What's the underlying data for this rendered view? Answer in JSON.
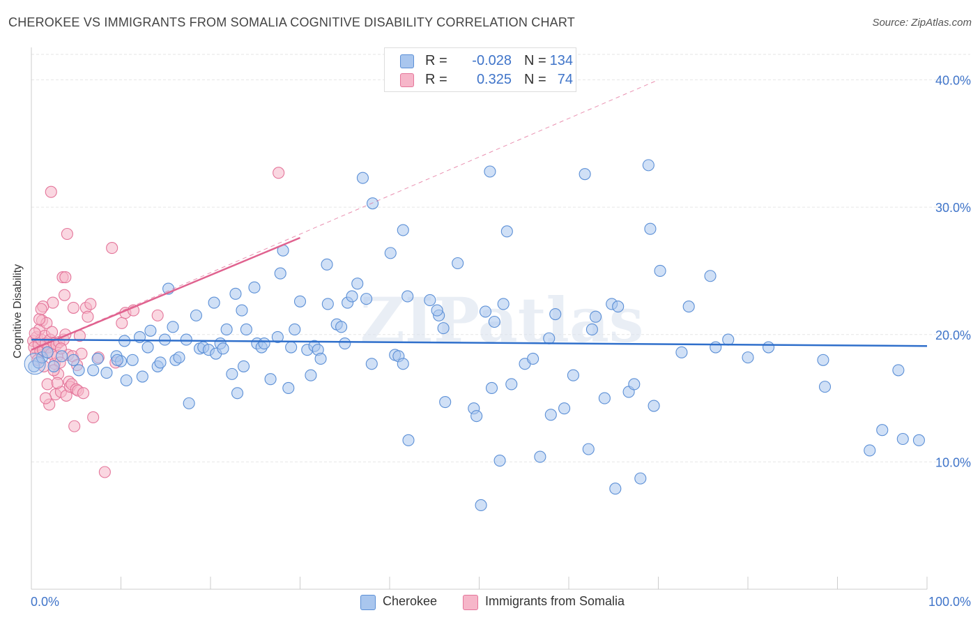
{
  "title": "CHEROKEE VS IMMIGRANTS FROM SOMALIA COGNITIVE DISABILITY CORRELATION CHART",
  "source": "Source: ZipAtlas.com",
  "watermark": "ZIPatlas",
  "colors": {
    "cherokee_fill": "#a9c6ee",
    "cherokee_stroke": "#5b8fd6",
    "cherokee_line": "#2f6fcb",
    "somalia_fill": "#f6b6c9",
    "somalia_stroke": "#e4759a",
    "somalia_line": "#e0628f",
    "tick_label": "#3f74c9",
    "grid": "#e6e6e6"
  },
  "legend": {
    "rows": [
      {
        "r_label": "R =",
        "r_value": "-0.028",
        "n_label": "N =",
        "n_value": "134"
      },
      {
        "r_label": "R =",
        "r_value": "0.325",
        "n_label": "N =",
        "n_value": "74"
      }
    ]
  },
  "bottom_legend": [
    "Cherokee",
    "Immigrants from Somalia"
  ],
  "chart_data": {
    "type": "scatter",
    "title": "CHEROKEE VS IMMIGRANTS FROM SOMALIA COGNITIVE DISABILITY CORRELATION CHART",
    "xlabel": "",
    "ylabel": "Cognitive Disability",
    "xlim": [
      0,
      100
    ],
    "ylim": [
      0,
      42
    ],
    "x_tick_labels": [
      "0.0%",
      "100.0%"
    ],
    "y_ticks": [
      10,
      20,
      30,
      40
    ],
    "y_tick_labels": [
      "10.0%",
      "20.0%",
      "30.0%",
      "40.0%"
    ],
    "grid": true,
    "legend_position": "top-center",
    "series": [
      {
        "name": "Cherokee",
        "r": -0.028,
        "n": 134,
        "trend": {
          "x": [
            0,
            100
          ],
          "y": [
            19.6,
            19.1
          ]
        },
        "points": [
          [
            0.3,
            17.5
          ],
          [
            0.8,
            17.8
          ],
          [
            1.2,
            18.2
          ],
          [
            1.8,
            18.6
          ],
          [
            2.5,
            17.5
          ],
          [
            3.4,
            18.3
          ],
          [
            4.7,
            18.0
          ],
          [
            5.3,
            17.2
          ],
          [
            6.9,
            17.2
          ],
          [
            7.4,
            18.1
          ],
          [
            8.4,
            17.0
          ],
          [
            9.5,
            18.3
          ],
          [
            10.0,
            17.9
          ],
          [
            10.4,
            19.5
          ],
          [
            10.6,
            16.4
          ],
          [
            11.3,
            18.0
          ],
          [
            12.1,
            19.8
          ],
          [
            12.4,
            16.7
          ],
          [
            13.0,
            19.0
          ],
          [
            13.3,
            20.3
          ],
          [
            14.1,
            17.5
          ],
          [
            14.4,
            17.8
          ],
          [
            14.9,
            19.6
          ],
          [
            15.3,
            23.6
          ],
          [
            15.8,
            20.6
          ],
          [
            16.1,
            18.0
          ],
          [
            16.5,
            18.2
          ],
          [
            17.3,
            19.6
          ],
          [
            17.6,
            14.6
          ],
          [
            18.4,
            21.5
          ],
          [
            18.8,
            18.9
          ],
          [
            19.2,
            19.0
          ],
          [
            19.8,
            18.8
          ],
          [
            20.4,
            22.5
          ],
          [
            20.6,
            18.5
          ],
          [
            21.1,
            19.3
          ],
          [
            21.4,
            18.9
          ],
          [
            21.8,
            20.4
          ],
          [
            22.4,
            16.9
          ],
          [
            22.8,
            23.2
          ],
          [
            23.0,
            15.4
          ],
          [
            23.5,
            21.9
          ],
          [
            24.0,
            20.4
          ],
          [
            24.9,
            23.7
          ],
          [
            25.2,
            19.3
          ],
          [
            25.7,
            19.0
          ],
          [
            26.0,
            19.3
          ],
          [
            26.7,
            16.5
          ],
          [
            27.5,
            19.8
          ],
          [
            27.8,
            24.8
          ],
          [
            28.1,
            26.6
          ],
          [
            28.7,
            15.8
          ],
          [
            29.0,
            19.0
          ],
          [
            29.4,
            20.4
          ],
          [
            30.0,
            22.6
          ],
          [
            30.8,
            18.8
          ],
          [
            31.2,
            16.8
          ],
          [
            31.6,
            19.1
          ],
          [
            32.0,
            18.8
          ],
          [
            32.3,
            18.1
          ],
          [
            33.0,
            25.5
          ],
          [
            33.1,
            22.4
          ],
          [
            34.1,
            20.8
          ],
          [
            34.6,
            20.6
          ],
          [
            35.0,
            19.3
          ],
          [
            35.3,
            22.5
          ],
          [
            35.8,
            23.0
          ],
          [
            36.4,
            24.0
          ],
          [
            37.0,
            32.3
          ],
          [
            37.4,
            22.8
          ],
          [
            38.0,
            17.7
          ],
          [
            38.1,
            30.3
          ],
          [
            40.1,
            26.4
          ],
          [
            40.6,
            18.4
          ],
          [
            41.0,
            18.3
          ],
          [
            41.5,
            17.7
          ],
          [
            41.5,
            28.2
          ],
          [
            42.0,
            23.0
          ],
          [
            42.1,
            11.7
          ],
          [
            44.5,
            22.7
          ],
          [
            45.5,
            21.5
          ],
          [
            46.0,
            20.5
          ],
          [
            46.2,
            14.7
          ],
          [
            47.6,
            25.6
          ],
          [
            49.4,
            14.2
          ],
          [
            49.7,
            13.6
          ],
          [
            50.2,
            6.6
          ],
          [
            50.7,
            21.8
          ],
          [
            51.2,
            32.8
          ],
          [
            51.4,
            15.8
          ],
          [
            51.7,
            21.0
          ],
          [
            52.3,
            10.1
          ],
          [
            52.7,
            22.4
          ],
          [
            53.1,
            28.1
          ],
          [
            53.6,
            16.1
          ],
          [
            55.1,
            17.7
          ],
          [
            56.0,
            18.1
          ],
          [
            57.8,
            19.7
          ],
          [
            58.0,
            13.7
          ],
          [
            58.5,
            21.6
          ],
          [
            59.5,
            14.2
          ],
          [
            60.5,
            16.8
          ],
          [
            61.8,
            32.6
          ],
          [
            62.2,
            11.0
          ],
          [
            62.6,
            20.4
          ],
          [
            63.0,
            21.4
          ],
          [
            64.0,
            15.0
          ],
          [
            64.8,
            22.4
          ],
          [
            65.5,
            22.2
          ],
          [
            66.7,
            15.5
          ],
          [
            67.3,
            16.1
          ],
          [
            68.0,
            8.7
          ],
          [
            68.9,
            33.3
          ],
          [
            69.1,
            28.3
          ],
          [
            69.5,
            14.4
          ],
          [
            70.2,
            25.0
          ],
          [
            72.6,
            18.6
          ],
          [
            73.4,
            22.2
          ],
          [
            76.4,
            19.0
          ],
          [
            77.8,
            19.6
          ],
          [
            80.0,
            18.2
          ],
          [
            82.3,
            19.0
          ],
          [
            88.4,
            18.0
          ],
          [
            88.6,
            15.9
          ],
          [
            93.6,
            10.9
          ],
          [
            95.0,
            12.5
          ],
          [
            96.8,
            17.2
          ],
          [
            97.3,
            11.8
          ],
          [
            99.1,
            11.7
          ],
          [
            56.8,
            10.4
          ],
          [
            65.2,
            7.9
          ],
          [
            75.8,
            24.6
          ],
          [
            45.3,
            21.9
          ],
          [
            23.7,
            17.5
          ],
          [
            9.6,
            18.0
          ]
        ]
      },
      {
        "name": "Immigrants from Somalia",
        "r": 0.325,
        "n": 74,
        "trend": {
          "x": [
            0,
            30
          ],
          "y": [
            18.8,
            27.6
          ]
        },
        "trend_extended": {
          "x": [
            0,
            70
          ],
          "y": [
            18.8,
            40.0
          ]
        },
        "points": [
          [
            0.2,
            19.5
          ],
          [
            0.3,
            19.0
          ],
          [
            0.5,
            18.5
          ],
          [
            0.6,
            19.8
          ],
          [
            0.7,
            18.0
          ],
          [
            0.8,
            19.2
          ],
          [
            0.9,
            20.4
          ],
          [
            1.0,
            18.7
          ],
          [
            1.1,
            19.6
          ],
          [
            1.2,
            21.1
          ],
          [
            1.3,
            18.8
          ],
          [
            1.4,
            17.5
          ],
          [
            1.5,
            19.9
          ],
          [
            1.6,
            19.3
          ],
          [
            1.7,
            20.9
          ],
          [
            1.8,
            18.6
          ],
          [
            1.9,
            19.0
          ],
          [
            2.0,
            14.5
          ],
          [
            2.1,
            19.6
          ],
          [
            2.2,
            18.5
          ],
          [
            2.3,
            20.2
          ],
          [
            2.4,
            22.5
          ],
          [
            2.5,
            19.3
          ],
          [
            2.6,
            17.7
          ],
          [
            2.7,
            15.3
          ],
          [
            2.8,
            19.2
          ],
          [
            2.9,
            18.3
          ],
          [
            3.0,
            16.9
          ],
          [
            3.1,
            19.4
          ],
          [
            3.2,
            17.8
          ],
          [
            3.3,
            15.5
          ],
          [
            3.5,
            24.5
          ],
          [
            3.6,
            19.6
          ],
          [
            3.7,
            23.1
          ],
          [
            3.8,
            20.0
          ],
          [
            3.9,
            15.2
          ],
          [
            4.0,
            27.9
          ],
          [
            4.1,
            18.4
          ],
          [
            4.2,
            16.3
          ],
          [
            4.3,
            15.9
          ],
          [
            4.5,
            16.1
          ],
          [
            4.6,
            18.3
          ],
          [
            4.7,
            22.1
          ],
          [
            4.8,
            12.8
          ],
          [
            5.0,
            15.7
          ],
          [
            5.2,
            15.6
          ],
          [
            5.4,
            19.9
          ],
          [
            5.6,
            18.5
          ],
          [
            5.8,
            15.4
          ],
          [
            6.1,
            22.1
          ],
          [
            6.3,
            21.4
          ],
          [
            6.6,
            22.4
          ],
          [
            6.9,
            13.5
          ],
          [
            7.5,
            18.2
          ],
          [
            8.2,
            9.2
          ],
          [
            9.0,
            26.8
          ],
          [
            9.4,
            17.8
          ],
          [
            10.1,
            20.9
          ],
          [
            10.5,
            21.7
          ],
          [
            11.4,
            21.9
          ],
          [
            14.1,
            21.5
          ],
          [
            27.6,
            32.7
          ],
          [
            2.2,
            31.2
          ],
          [
            1.3,
            22.2
          ],
          [
            0.9,
            21.2
          ],
          [
            1.8,
            16.1
          ],
          [
            2.9,
            16.2
          ],
          [
            3.8,
            24.5
          ],
          [
            5.1,
            17.6
          ],
          [
            1.6,
            15.0
          ],
          [
            2.5,
            17.2
          ],
          [
            0.4,
            20.1
          ],
          [
            1.1,
            22.0
          ],
          [
            3.3,
            18.9
          ]
        ]
      }
    ]
  }
}
